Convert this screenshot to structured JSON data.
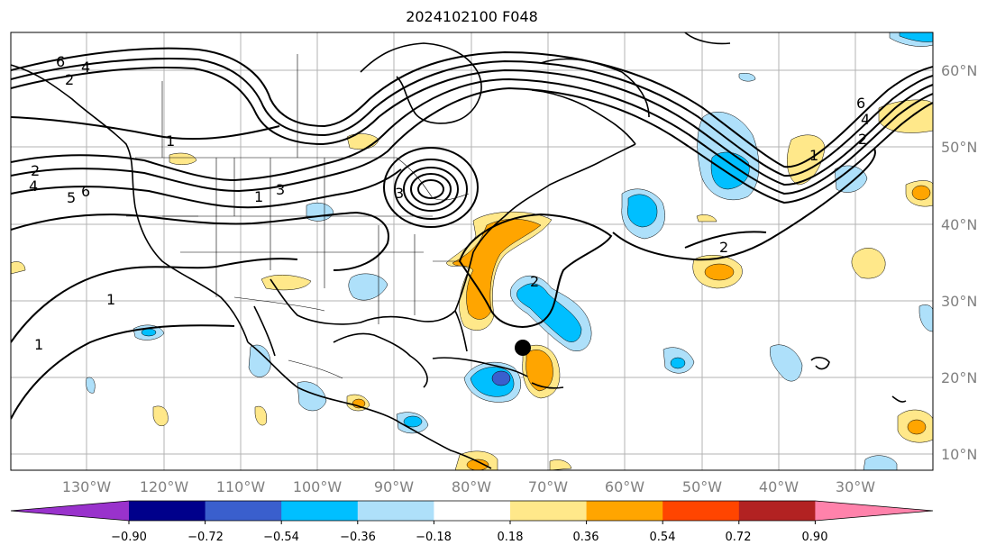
{
  "title": "2024102100 F048",
  "map": {
    "lon_labels": [
      "130°W",
      "120°W",
      "110°W",
      "100°W",
      "90°W",
      "80°W",
      "70°W",
      "60°W",
      "50°W",
      "40°W",
      "30°W"
    ],
    "lat_labels": [
      "60°N",
      "50°N",
      "40°N",
      "30°N",
      "20°N",
      "10°N"
    ],
    "contour_labels": [
      "6",
      "2",
      "4",
      "1",
      "2",
      "4",
      "5",
      "6",
      "1",
      "3",
      "1",
      "1",
      "3",
      "2",
      "6",
      "4",
      "2",
      "2",
      "1"
    ],
    "marker": "filled-circle"
  },
  "colorbar": {
    "colors": [
      "#9932cc",
      "#00008b",
      "#3a5fcd",
      "#00bfff",
      "#aee0fa",
      "#ffffff",
      "#ffe88a",
      "#ffa500",
      "#ff4500",
      "#b22222",
      "#ff82ab"
    ],
    "tick_labels": [
      "−0.90",
      "−0.72",
      "−0.54",
      "−0.36",
      "−0.18",
      "0.18",
      "0.36",
      "0.54",
      "0.72",
      "0.90"
    ]
  }
}
